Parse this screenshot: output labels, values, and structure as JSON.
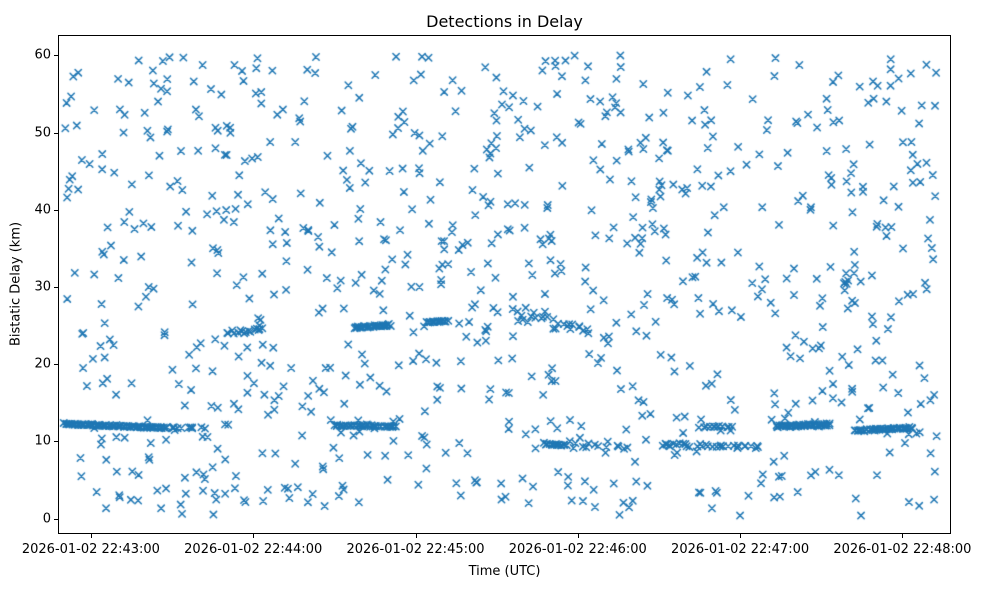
{
  "chart_data": {
    "type": "scatter",
    "title": "Detections in Delay",
    "xlabel": "Time (UTC)",
    "ylabel": "Bistatic Delay (km)",
    "legend": false,
    "grid": false,
    "marker": "x",
    "marker_color": "#1f77b4",
    "marker_size_px": 7,
    "marker_stroke_px": 1.5,
    "x_axis": {
      "kind": "time",
      "tick_seconds": [
        0,
        60,
        120,
        180,
        240,
        300
      ],
      "tick_labels": [
        "2026-01-02 22:43:00",
        "2026-01-02 22:44:00",
        "2026-01-02 22:45:00",
        "2026-01-02 22:46:00",
        "2026-01-02 22:47:00",
        "2026-01-02 22:48:00"
      ],
      "xlim_seconds": [
        -11.8,
        317.6
      ]
    },
    "y_axis": {
      "tick_values": [
        0,
        10,
        20,
        30,
        40,
        50,
        60
      ],
      "tick_labels": [
        "0",
        "10",
        "20",
        "30",
        "40",
        "50",
        "60"
      ],
      "ylim": [
        -1.85,
        62.5
      ]
    },
    "point_distribution": {
      "note": "approx 1260 detections: uniform clutter background plus dense near-horizontal target tracks; t in seconds after 22:43:00 UTC, y in km",
      "seed": 42,
      "background": {
        "count": 880,
        "t_range": [
          -10,
          314
        ],
        "y_range": [
          0.4,
          60.0
        ]
      },
      "tracks": [
        {
          "t_start": -10,
          "t_end": 28,
          "y_start": 12.3,
          "y_end": 11.75,
          "count": 85,
          "y_jitter": 0.12
        },
        {
          "t_start": 28,
          "t_end": 42,
          "y_start": 11.9,
          "y_end": 11.8,
          "count": 10,
          "y_jitter": 0.18
        },
        {
          "t_start": 50,
          "t_end": 64,
          "y_start": 24.0,
          "y_end": 24.6,
          "count": 16,
          "y_jitter": 0.35
        },
        {
          "t_start": 97,
          "t_end": 111,
          "y_start": 24.7,
          "y_end": 25.1,
          "count": 35,
          "y_jitter": 0.15
        },
        {
          "t_start": 124,
          "t_end": 132,
          "y_start": 25.4,
          "y_end": 25.6,
          "count": 18,
          "y_jitter": 0.1
        },
        {
          "t_start": 90,
          "t_end": 113,
          "y_start": 12.1,
          "y_end": 11.95,
          "count": 40,
          "y_jitter": 0.12
        },
        {
          "t_start": 167,
          "t_end": 176,
          "y_start": 9.7,
          "y_end": 9.5,
          "count": 16,
          "y_jitter": 0.15
        },
        {
          "t_start": 155,
          "t_end": 185,
          "y_start": 26.3,
          "y_end": 24.6,
          "count": 20,
          "y_jitter": 1.1
        },
        {
          "t_start": 175,
          "t_end": 200,
          "y_start": 9.8,
          "y_end": 9.3,
          "count": 14,
          "y_jitter": 0.7
        },
        {
          "t_start": 210,
          "t_end": 248,
          "y_start": 9.6,
          "y_end": 9.3,
          "count": 30,
          "y_jitter": 0.25
        },
        {
          "t_start": 225,
          "t_end": 237,
          "y_start": 11.9,
          "y_end": 11.9,
          "count": 12,
          "y_jitter": 0.15
        },
        {
          "t_start": 253,
          "t_end": 273,
          "y_start": 12.0,
          "y_end": 12.15,
          "count": 50,
          "y_jitter": 0.25
        },
        {
          "t_start": 282,
          "t_end": 304,
          "y_start": 11.4,
          "y_end": 11.75,
          "count": 45,
          "y_jitter": 0.15
        }
      ]
    }
  }
}
